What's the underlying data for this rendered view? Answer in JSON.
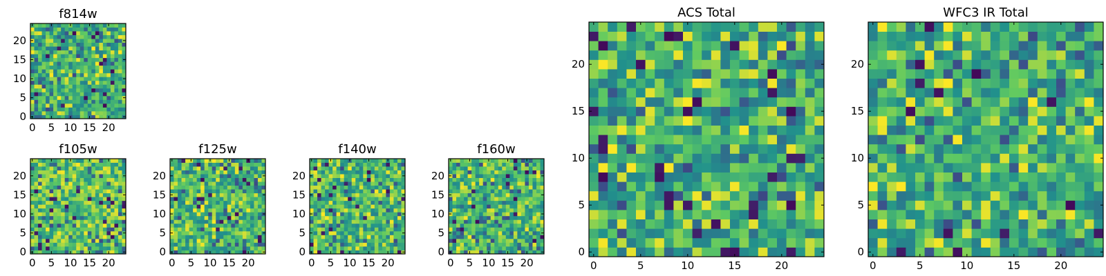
{
  "figure": {
    "panels": [
      {
        "id": "f814w",
        "title": "f814w",
        "xticks": [
          "0",
          "5",
          "10",
          "15",
          "20"
        ],
        "yticks": [
          "0",
          "5",
          "10",
          "15",
          "20"
        ]
      },
      {
        "id": "f105w",
        "title": "f105w",
        "xticks": [
          "0",
          "5",
          "10",
          "15",
          "20"
        ],
        "yticks": [
          "0",
          "5",
          "10",
          "15",
          "20"
        ]
      },
      {
        "id": "f125w",
        "title": "f125w",
        "xticks": [
          "0",
          "5",
          "10",
          "15",
          "20"
        ],
        "yticks": [
          "0",
          "5",
          "10",
          "15",
          "20"
        ]
      },
      {
        "id": "f140w",
        "title": "f140w",
        "xticks": [
          "0",
          "5",
          "10",
          "15",
          "20"
        ],
        "yticks": [
          "0",
          "5",
          "10",
          "15",
          "20"
        ]
      },
      {
        "id": "f160w",
        "title": "f160w",
        "xticks": [
          "0",
          "5",
          "10",
          "15",
          "20"
        ],
        "yticks": [
          "0",
          "5",
          "10",
          "15",
          "20"
        ]
      },
      {
        "id": "acs_total",
        "title": "ACS Total",
        "xticks": [
          "0",
          "5",
          "10",
          "15",
          "20"
        ],
        "yticks": [
          "0",
          "5",
          "10",
          "15",
          "20"
        ]
      },
      {
        "id": "wfc3_ir_total",
        "title": "WFC3 IR Total",
        "xticks": [
          "0",
          "5",
          "10",
          "15",
          "20"
        ],
        "yticks": [
          "0",
          "5",
          "10",
          "15",
          "20"
        ]
      }
    ]
  },
  "chart_data": [
    {
      "type": "heatmap",
      "title": "f814w",
      "grid_size": [
        25,
        25
      ],
      "xlim": [
        -0.5,
        24.5
      ],
      "ylim": [
        -0.5,
        24.5
      ],
      "colormap": "viridis",
      "colormap_samples": [
        "#440154",
        "#3b528b",
        "#21918c",
        "#5ec962",
        "#fde725"
      ],
      "noise_seed": 11,
      "noise_bias": 0.62
    },
    {
      "type": "heatmap",
      "title": "f105w",
      "grid_size": [
        25,
        25
      ],
      "xlim": [
        -0.5,
        24.5
      ],
      "ylim": [
        -0.5,
        24.5
      ],
      "colormap": "viridis",
      "colormap_samples": [
        "#440154",
        "#3b528b",
        "#21918c",
        "#5ec962",
        "#fde725"
      ],
      "noise_seed": 23,
      "noise_bias": 0.72
    },
    {
      "type": "heatmap",
      "title": "f125w",
      "grid_size": [
        25,
        25
      ],
      "xlim": [
        -0.5,
        24.5
      ],
      "ylim": [
        -0.5,
        24.5
      ],
      "colormap": "viridis",
      "colormap_samples": [
        "#440154",
        "#3b528b",
        "#21918c",
        "#5ec962",
        "#fde725"
      ],
      "noise_seed": 37,
      "noise_bias": 0.66
    },
    {
      "type": "heatmap",
      "title": "f140w",
      "grid_size": [
        25,
        25
      ],
      "xlim": [
        -0.5,
        24.5
      ],
      "ylim": [
        -0.5,
        24.5
      ],
      "colormap": "viridis",
      "colormap_samples": [
        "#440154",
        "#3b528b",
        "#21918c",
        "#5ec962",
        "#fde725"
      ],
      "noise_seed": 41,
      "noise_bias": 0.66
    },
    {
      "type": "heatmap",
      "title": "f160w",
      "grid_size": [
        25,
        25
      ],
      "xlim": [
        -0.5,
        24.5
      ],
      "ylim": [
        -0.5,
        24.5
      ],
      "colormap": "viridis",
      "colormap_samples": [
        "#440154",
        "#3b528b",
        "#21918c",
        "#5ec962",
        "#fde725"
      ],
      "noise_seed": 53,
      "noise_bias": 0.66
    },
    {
      "type": "heatmap",
      "title": "ACS Total",
      "grid_size": [
        25,
        25
      ],
      "xlim": [
        -0.5,
        24.5
      ],
      "ylim": [
        -0.5,
        24.5
      ],
      "colormap": "viridis",
      "colormap_samples": [
        "#440154",
        "#3b528b",
        "#21918c",
        "#5ec962",
        "#fde725"
      ],
      "noise_seed": 67,
      "noise_bias": 0.62
    },
    {
      "type": "heatmap",
      "title": "WFC3 IR Total",
      "grid_size": [
        25,
        25
      ],
      "xlim": [
        -0.5,
        24.5
      ],
      "ylim": [
        -0.5,
        24.5
      ],
      "colormap": "viridis",
      "colormap_samples": [
        "#440154",
        "#3b528b",
        "#21918c",
        "#5ec962",
        "#fde725"
      ],
      "noise_seed": 79,
      "noise_bias": 0.62
    }
  ]
}
